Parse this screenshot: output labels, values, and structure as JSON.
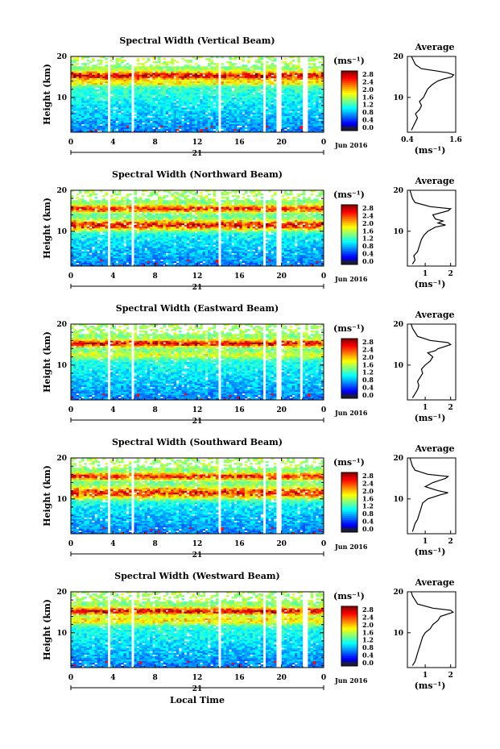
{
  "chart_data": [
    {
      "type": "heatmap",
      "title": "Spectral Width (Vertical Beam)",
      "ylabel": "Height (km)",
      "x_ticks": [
        "0",
        "4",
        "8",
        "12",
        "16",
        "20",
        "0"
      ],
      "y_ticks": [
        "20",
        "10"
      ],
      "date_label": "21",
      "month_label": "Jun 2016",
      "colorbar_unit": "(ms⁻¹)",
      "colorbar_ticks": [
        "2.8",
        "2.4",
        "2.0",
        "1.6",
        "1.2",
        "0.8",
        "0.4",
        "0.0"
      ],
      "xlim": [
        0,
        24
      ],
      "ylim": [
        1.5,
        20
      ],
      "zlim": [
        0,
        3.0
      ],
      "gaps_hours": [
        [
          3.4,
          3.7
        ],
        [
          5.8,
          6.1
        ],
        [
          14.0,
          14.3
        ],
        [
          18.3,
          18.6
        ],
        [
          19.6,
          19.9
        ],
        [
          22.1,
          22.4
        ]
      ],
      "layers": [
        {
          "height": 15.3,
          "width": 1.0,
          "value": 2.2
        },
        {
          "height": 13.5,
          "width": 0.6,
          "value": 1.4
        }
      ],
      "average": {
        "title": "Average",
        "xlabel": "(ms⁻¹)",
        "x_ticks": [
          "0.4",
          "1.6"
        ],
        "xlim": [
          0.4,
          1.6
        ],
        "y_ticks": [
          "20",
          "10"
        ],
        "height": [
          2,
          3,
          4,
          5,
          6,
          7,
          8,
          9,
          10,
          11,
          12,
          13,
          14,
          14.5,
          15,
          15.5,
          16,
          16.5,
          17,
          18,
          19,
          20
        ],
        "value": [
          0.5,
          0.55,
          0.6,
          0.65,
          0.6,
          0.7,
          0.75,
          0.7,
          0.8,
          0.85,
          0.9,
          1.0,
          1.15,
          1.3,
          1.5,
          1.55,
          1.4,
          1.1,
          0.75,
          0.6,
          0.55,
          0.5
        ]
      }
    },
    {
      "type": "heatmap",
      "title": "Spectral Width (Northward Beam)",
      "ylabel": "Height (km)",
      "x_ticks": [
        "0",
        "4",
        "8",
        "12",
        "16",
        "20",
        "0"
      ],
      "y_ticks": [
        "20",
        "10"
      ],
      "date_label": "21",
      "month_label": "Jun 2016",
      "colorbar_unit": "(ms⁻¹)",
      "colorbar_ticks": [
        "2.8",
        "2.4",
        "2.0",
        "1.6",
        "1.2",
        "0.8",
        "0.4",
        "0.0"
      ],
      "xlim": [
        0,
        24
      ],
      "ylim": [
        1.5,
        20
      ],
      "zlim": [
        0,
        3.0
      ],
      "gaps_hours": [
        [
          3.4,
          3.7
        ],
        [
          5.8,
          6.1
        ],
        [
          14.0,
          14.3
        ],
        [
          18.3,
          18.6
        ],
        [
          19.6,
          19.9
        ]
      ],
      "layers": [
        {
          "height": 15.5,
          "width": 0.8,
          "value": 2.0
        },
        {
          "height": 11.5,
          "width": 1.2,
          "value": 2.3
        }
      ],
      "average": {
        "title": "Average",
        "xlabel": "(ms⁻¹)",
        "x_ticks": [
          "1",
          "2"
        ],
        "xlim": [
          0.3,
          2.2
        ],
        "y_ticks": [
          "20",
          "10"
        ],
        "height": [
          2,
          3,
          4,
          5,
          6,
          7,
          8,
          9,
          10,
          11,
          11.5,
          12,
          12.5,
          13,
          14,
          15,
          15.5,
          16,
          17,
          18,
          19,
          20
        ],
        "value": [
          0.5,
          0.6,
          0.55,
          0.7,
          0.75,
          0.8,
          0.85,
          0.95,
          1.1,
          1.4,
          1.8,
          1.5,
          1.7,
          1.4,
          1.3,
          1.9,
          2.0,
          1.2,
          0.6,
          0.5,
          0.45,
          0.4
        ]
      }
    },
    {
      "type": "heatmap",
      "title": "Spectral Width (Eastward Beam)",
      "ylabel": "Height (km)",
      "x_ticks": [
        "0",
        "4",
        "8",
        "12",
        "16",
        "20",
        "0"
      ],
      "y_ticks": [
        "20",
        "10"
      ],
      "date_label": "21",
      "month_label": "Jun 2016",
      "colorbar_unit": "(ms⁻¹)",
      "colorbar_ticks": [
        "2.8",
        "2.4",
        "2.0",
        "1.6",
        "1.2",
        "0.8",
        "0.4",
        "0.0"
      ],
      "xlim": [
        0,
        24
      ],
      "ylim": [
        1.5,
        20
      ],
      "zlim": [
        0,
        3.0
      ],
      "gaps_hours": [
        [
          3.4,
          3.7
        ],
        [
          5.8,
          6.1
        ],
        [
          14.0,
          14.3
        ],
        [
          18.3,
          18.6
        ],
        [
          19.6,
          19.9
        ],
        [
          21.8,
          22.1
        ]
      ],
      "layers": [
        {
          "height": 15.3,
          "width": 0.8,
          "value": 2.2
        },
        {
          "height": 12.5,
          "width": 1.0,
          "value": 1.3
        }
      ],
      "average": {
        "title": "Average",
        "xlabel": "(ms⁻¹)",
        "x_ticks": [
          "1",
          "2"
        ],
        "xlim": [
          0.3,
          2.2
        ],
        "y_ticks": [
          "20",
          "10"
        ],
        "height": [
          2,
          3,
          4,
          5,
          6,
          7,
          8,
          9,
          10,
          11,
          12,
          13,
          13.5,
          14,
          15,
          15.5,
          16,
          17,
          18,
          19,
          20
        ],
        "value": [
          0.5,
          0.6,
          0.7,
          0.75,
          0.7,
          0.8,
          0.9,
          0.85,
          1.0,
          1.2,
          1.3,
          1.1,
          1.4,
          1.5,
          2.0,
          1.9,
          1.2,
          0.7,
          0.6,
          0.5,
          0.45
        ]
      }
    },
    {
      "type": "heatmap",
      "title": "Spectral Width (Southward Beam)",
      "ylabel": "Height (km)",
      "x_ticks": [
        "0",
        "4",
        "8",
        "12",
        "16",
        "20",
        "0"
      ],
      "y_ticks": [
        "20",
        "10"
      ],
      "date_label": "21",
      "month_label": "Jun 2016",
      "colorbar_unit": "(ms⁻¹)",
      "colorbar_ticks": [
        "2.8",
        "2.4",
        "2.0",
        "1.6",
        "1.2",
        "0.8",
        "0.4",
        "0.0"
      ],
      "xlim": [
        0,
        24
      ],
      "ylim": [
        1.5,
        20
      ],
      "zlim": [
        0,
        3.0
      ],
      "gaps_hours": [
        [
          3.4,
          3.7
        ],
        [
          5.8,
          6.1
        ],
        [
          14.0,
          14.3
        ],
        [
          18.3,
          18.6
        ],
        [
          19.6,
          19.9
        ]
      ],
      "layers": [
        {
          "height": 15.5,
          "width": 0.8,
          "value": 2.0
        },
        {
          "height": 11.5,
          "width": 1.4,
          "value": 2.2
        }
      ],
      "average": {
        "title": "Average",
        "xlabel": "(ms⁻¹)",
        "x_ticks": [
          "1",
          "2"
        ],
        "xlim": [
          0.3,
          2.2
        ],
        "y_ticks": [
          "20",
          "10"
        ],
        "height": [
          2,
          3,
          4,
          5,
          6,
          7,
          8,
          9,
          10,
          11,
          11.5,
          12,
          13,
          14,
          15,
          15.5,
          16,
          17,
          18,
          19,
          20
        ],
        "value": [
          0.5,
          0.55,
          0.6,
          0.7,
          0.75,
          0.8,
          0.85,
          0.9,
          1.1,
          1.6,
          1.9,
          1.5,
          1.0,
          1.3,
          1.8,
          1.9,
          1.1,
          0.6,
          0.5,
          0.45,
          0.4
        ]
      }
    },
    {
      "type": "heatmap",
      "title": "Spectral Width (Westward Beam)",
      "ylabel": "Height (km)",
      "x_ticks": [
        "0",
        "4",
        "8",
        "12",
        "16",
        "20",
        "0"
      ],
      "y_ticks": [
        "20",
        "10"
      ],
      "date_label": "21",
      "month_label": "Jun 2016",
      "xlabel": "Local Time",
      "colorbar_unit": "(ms⁻¹)",
      "colorbar_ticks": [
        "2.8",
        "2.4",
        "2.0",
        "1.6",
        "1.2",
        "0.8",
        "0.4",
        "0.0"
      ],
      "xlim": [
        0,
        24
      ],
      "ylim": [
        1.5,
        20
      ],
      "zlim": [
        0,
        3.0
      ],
      "gaps_hours": [
        [
          3.4,
          3.7
        ],
        [
          5.8,
          6.1
        ],
        [
          14.0,
          14.3
        ],
        [
          18.3,
          18.6
        ],
        [
          19.6,
          19.9
        ],
        [
          22.1,
          22.4
        ]
      ],
      "layers": [
        {
          "height": 15.3,
          "width": 0.8,
          "value": 2.2
        },
        {
          "height": 13.0,
          "width": 1.0,
          "value": 1.5
        }
      ],
      "average": {
        "title": "Average",
        "xlabel": "(ms⁻¹)",
        "x_ticks": [
          "1",
          "2"
        ],
        "xlim": [
          0.3,
          2.2
        ],
        "y_ticks": [
          "20",
          "10"
        ],
        "height": [
          2,
          3,
          4,
          5,
          6,
          7,
          8,
          9,
          10,
          11,
          12,
          13,
          14,
          15,
          15.5,
          16,
          17,
          18,
          19,
          20
        ],
        "value": [
          0.5,
          0.6,
          0.65,
          0.7,
          0.75,
          0.8,
          0.85,
          0.9,
          1.0,
          1.2,
          1.3,
          1.5,
          1.6,
          2.1,
          2.0,
          1.3,
          0.7,
          0.6,
          0.5,
          0.45
        ]
      }
    }
  ]
}
